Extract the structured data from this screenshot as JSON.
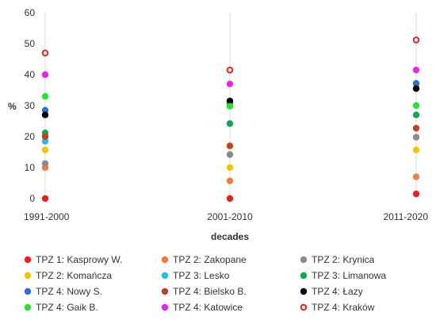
{
  "chart_data": {
    "type": "scatter",
    "title": "",
    "xlabel": "decades",
    "ylabel": "%",
    "categories": [
      "1991-2000",
      "2001-2010",
      "2011-2020"
    ],
    "ylim": [
      0,
      60
    ],
    "yticks": [
      0,
      10,
      20,
      30,
      40,
      50,
      60
    ],
    "grid": "vertical",
    "legend_position": "bottom",
    "series": [
      {
        "name": "TPZ 1: Kasprowy W.",
        "color": "#e8201f",
        "marker": "filled",
        "values": [
          0,
          0,
          1.5
        ]
      },
      {
        "name": "TPZ 2: Zakopane",
        "color": "#f07b3c",
        "marker": "filled",
        "values": [
          10,
          5.7,
          7
        ]
      },
      {
        "name": "TPZ 2: Krynica",
        "color": "#8a8a8a",
        "marker": "filled",
        "values": [
          11.3,
          14.2,
          19.8
        ]
      },
      {
        "name": "TPZ 2: Komańcza",
        "color": "#f5c200",
        "marker": "filled",
        "values": [
          15.7,
          10,
          15.7
        ]
      },
      {
        "name": "TPZ 3: Lesko",
        "color": "#22bef0",
        "marker": "filled",
        "values": [
          18.5,
          30,
          37
        ]
      },
      {
        "name": "TPZ 3: Limanowa",
        "color": "#12a551",
        "marker": "filled",
        "values": [
          21.2,
          24.2,
          27
        ]
      },
      {
        "name": "TPZ 4: Nowy S.",
        "color": "#2e6fd8",
        "marker": "filled",
        "values": [
          28.5,
          31,
          37.2
        ]
      },
      {
        "name": "TPZ 4: Bielsko B.",
        "color": "#c0421b",
        "marker": "filled",
        "values": [
          20,
          17,
          22.7
        ]
      },
      {
        "name": "TPZ 4: Łazy",
        "color": "#000000",
        "marker": "filled",
        "values": [
          27,
          31.5,
          35.5
        ]
      },
      {
        "name": "TPZ 4: Gaik B.",
        "color": "#27e427",
        "marker": "filled",
        "values": [
          33,
          29.8,
          30
        ]
      },
      {
        "name": "TPZ 4: Katowice",
        "color": "#ea25ea",
        "marker": "filled",
        "values": [
          40,
          37,
          41.5
        ]
      },
      {
        "name": "TPZ 4: Kraków",
        "color": "#e8201f",
        "marker": "open",
        "values": [
          47,
          41.5,
          51.2
        ]
      }
    ]
  }
}
